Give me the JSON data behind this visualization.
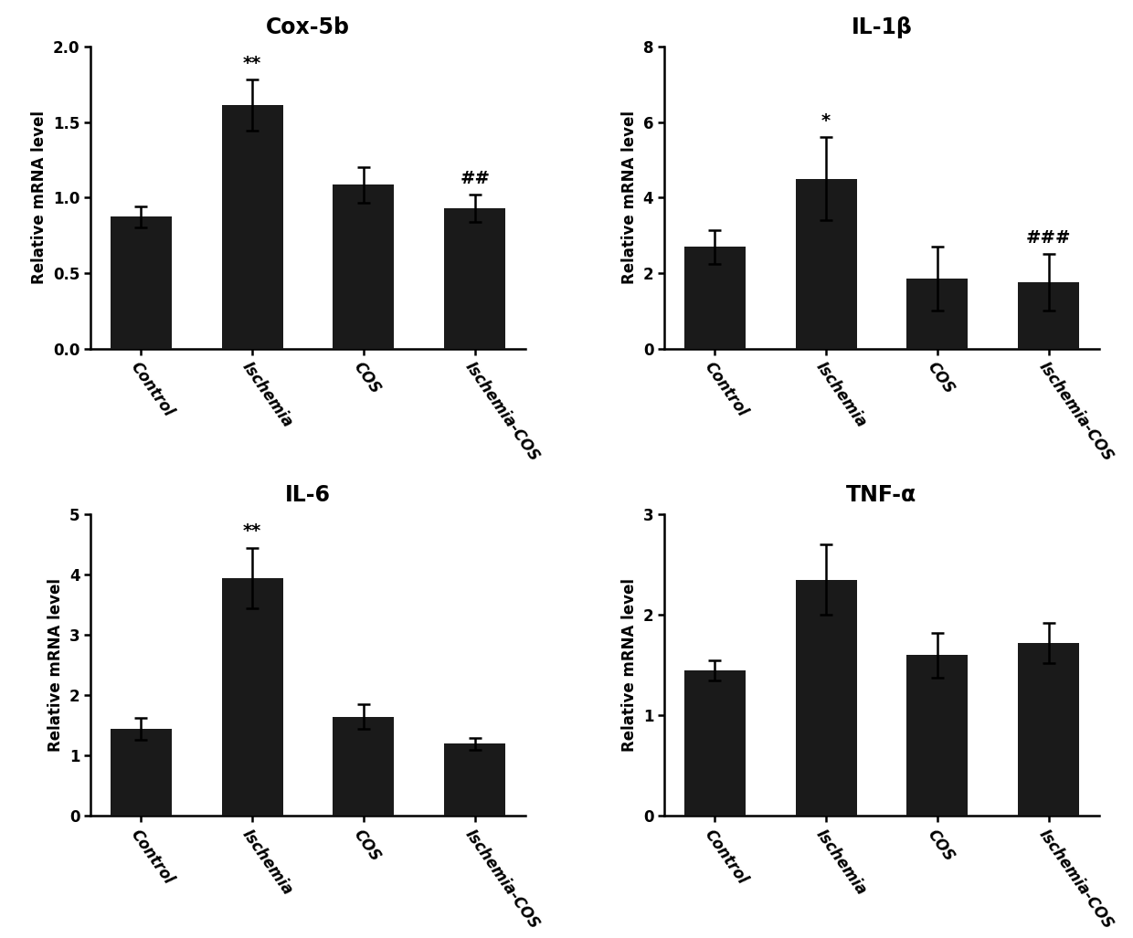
{
  "panels": [
    {
      "title": "Cox-5b",
      "categories": [
        "Control",
        "Ischemia",
        "COS",
        "Ischemia-COS"
      ],
      "values": [
        0.875,
        1.615,
        1.085,
        0.93
      ],
      "errors": [
        0.07,
        0.17,
        0.12,
        0.09
      ],
      "ylim": [
        0,
        2.0
      ],
      "yticks": [
        0.0,
        0.5,
        1.0,
        1.5,
        2.0
      ],
      "yticklabels": [
        "0.0",
        "0.5",
        "1.0",
        "1.5",
        "2.0"
      ],
      "annotations": [
        "",
        "**",
        "",
        "##"
      ],
      "ylabel": "Relative mRNA level"
    },
    {
      "title": "IL-1β",
      "categories": [
        "Control",
        "Ischemia",
        "COS",
        "Ischemia-COS"
      ],
      "values": [
        2.7,
        4.5,
        1.85,
        1.75
      ],
      "errors": [
        0.45,
        1.1,
        0.85,
        0.75
      ],
      "ylim": [
        0,
        8
      ],
      "yticks": [
        0,
        2,
        4,
        6,
        8
      ],
      "yticklabels": [
        "0",
        "2",
        "4",
        "6",
        "8"
      ],
      "annotations": [
        "",
        "*",
        "",
        "###"
      ],
      "ylabel": "Relative mRNA level"
    },
    {
      "title": "IL-6",
      "categories": [
        "Control",
        "Ischemia",
        "COS",
        "Ischemia-COS"
      ],
      "values": [
        1.45,
        3.95,
        1.65,
        1.2
      ],
      "errors": [
        0.18,
        0.5,
        0.2,
        0.1
      ],
      "ylim": [
        0,
        5
      ],
      "yticks": [
        0,
        1,
        2,
        3,
        4,
        5
      ],
      "yticklabels": [
        "0",
        "1",
        "2",
        "3",
        "4",
        "5"
      ],
      "annotations": [
        "",
        "**",
        "",
        ""
      ],
      "ylabel": "Relative mRNA level"
    },
    {
      "title": "TNF-α",
      "categories": [
        "Control",
        "Ischemia",
        "COS",
        "Ischemia-COS"
      ],
      "values": [
        1.45,
        2.35,
        1.6,
        1.72
      ],
      "errors": [
        0.1,
        0.35,
        0.22,
        0.2
      ],
      "ylim": [
        0,
        3
      ],
      "yticks": [
        0,
        1,
        2,
        3
      ],
      "yticklabels": [
        "0",
        "1",
        "2",
        "3"
      ],
      "annotations": [
        "",
        "",
        "",
        ""
      ],
      "ylabel": "Relative mRNA level"
    }
  ],
  "bar_color": "#1a1a1a",
  "bar_width": 0.55,
  "title_fontsize": 17,
  "label_fontsize": 12,
  "tick_fontsize": 12,
  "annot_fontsize": 14,
  "background_color": "#ffffff",
  "label_rotation": -55
}
